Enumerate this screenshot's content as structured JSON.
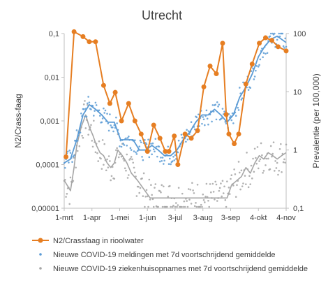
{
  "chart_data": {
    "type": "line",
    "title": "Utrecht",
    "ylabel": "N2/Crass-faag",
    "ylabel_right": "Prevalentie (per 100,000)",
    "x_ticks": [
      "1-mrt",
      "1-apr",
      "1-mei",
      "1-jun",
      "3-jul",
      "3-aug",
      "3-sep",
      "4-okt",
      "4-nov"
    ],
    "x_range": [
      "2020-03-01",
      "2020-11-04"
    ],
    "y_left": {
      "scale": "log",
      "range": [
        1e-05,
        0.1
      ],
      "ticks": [
        "0,00001",
        "0,0001",
        "0,001",
        "0,01",
        "0,1"
      ]
    },
    "y_right": {
      "scale": "log",
      "range": [
        0.1,
        100
      ],
      "ticks": [
        "0,1",
        "1",
        "10",
        "100"
      ]
    },
    "legend_position": "bottom",
    "grid": false,
    "colors": {
      "riool": "#e67e22",
      "meldingen": "#5b9bd5",
      "ziekenhuis": "#a5a5a5",
      "axis": "#bfbfbf"
    },
    "series": [
      {
        "name": "N2/Crassfaag in rioolwater",
        "axis": "left",
        "x": [
          "2020-03-03",
          "2020-03-12",
          "2020-03-22",
          "2020-03-29",
          "2020-04-05",
          "2020-04-14",
          "2020-04-21",
          "2020-04-27",
          "2020-05-04",
          "2020-05-12",
          "2020-05-19",
          "2020-05-26",
          "2020-06-02",
          "2020-06-09",
          "2020-06-16",
          "2020-06-22",
          "2020-06-26",
          "2020-07-02",
          "2020-07-06",
          "2020-07-14",
          "2020-07-21",
          "2020-07-28",
          "2020-08-04",
          "2020-08-11",
          "2020-08-18",
          "2020-08-25",
          "2020-08-29",
          "2020-09-01",
          "2020-09-07",
          "2020-09-12",
          "2020-09-20",
          "2020-09-27",
          "2020-10-05",
          "2020-10-12",
          "2020-10-19",
          "2020-10-26",
          "2020-11-04"
        ],
        "values": [
          0.00015,
          0.11,
          0.085,
          0.065,
          0.065,
          0.0065,
          0.0025,
          0.0045,
          0.001,
          0.0025,
          0.001,
          0.0005,
          0.0002,
          0.0008,
          0.0004,
          0.0002,
          0.0002,
          0.00045,
          0.0001,
          0.0005,
          0.0004,
          0.0006,
          0.006,
          0.018,
          0.012,
          0.06,
          0.0014,
          0.0005,
          0.0003,
          0.0005,
          0.007,
          0.02,
          0.06,
          0.08,
          0.07,
          0.05,
          0.04
        ]
      },
      {
        "name": "Nieuwe COVID-19 meldingen met 7d voortschrijdend gemiddelde",
        "axis": "right",
        "x": [
          "2020-03-01",
          "2020-03-08",
          "2020-03-15",
          "2020-03-22",
          "2020-03-29",
          "2020-04-05",
          "2020-04-12",
          "2020-04-19",
          "2020-04-26",
          "2020-05-03",
          "2020-05-10",
          "2020-05-17",
          "2020-05-24",
          "2020-05-31",
          "2020-06-07",
          "2020-06-14",
          "2020-06-21",
          "2020-06-28",
          "2020-07-05",
          "2020-07-12",
          "2020-07-19",
          "2020-07-26",
          "2020-08-02",
          "2020-08-09",
          "2020-08-16",
          "2020-08-23",
          "2020-08-30",
          "2020-09-06",
          "2020-09-13",
          "2020-09-20",
          "2020-09-27",
          "2020-10-04",
          "2020-10-11",
          "2020-10-18",
          "2020-10-25",
          "2020-11-04"
        ],
        "values": [
          0.6,
          0.7,
          1.5,
          4,
          6,
          5,
          4,
          3,
          3,
          1.5,
          1.5,
          1.5,
          1,
          1,
          1.2,
          1,
          0.8,
          0.8,
          1,
          1.5,
          2,
          3,
          4,
          4,
          5,
          4,
          3,
          4,
          8,
          12,
          20,
          40,
          60,
          80,
          90,
          70
        ]
      },
      {
        "name": "Nieuwe COVID-19 ziekenhuisopnames met 7d voortschrijdend gemiddelde",
        "axis": "right",
        "x": [
          "2020-03-01",
          "2020-03-08",
          "2020-03-12",
          "2020-03-15",
          "2020-03-20",
          "2020-03-25",
          "2020-03-29",
          "2020-04-02",
          "2020-04-06",
          "2020-04-10",
          "2020-04-14",
          "2020-04-18",
          "2020-04-22",
          "2020-04-26",
          "2020-04-30",
          "2020-05-05",
          "2020-05-10",
          "2020-05-15",
          "2020-05-22",
          "2020-06-05",
          "2020-07-01",
          "2020-08-01",
          "2020-08-30",
          "2020-09-04",
          "2020-09-10",
          "2020-09-15",
          "2020-09-20",
          "2020-09-25",
          "2020-09-30",
          "2020-10-05",
          "2020-10-10",
          "2020-10-15",
          "2020-10-20",
          "2020-10-25",
          "2020-10-30",
          "2020-11-04"
        ],
        "values": [
          0.3,
          0.2,
          0.5,
          1.2,
          2.5,
          4,
          2.5,
          1.8,
          1.2,
          0.9,
          0.8,
          0.6,
          0.5,
          0.6,
          1,
          0.8,
          0.6,
          0.4,
          0.3,
          0.15,
          0.15,
          0.15,
          0.15,
          0.25,
          0.3,
          0.35,
          0.5,
          0.4,
          0.6,
          0.8,
          0.7,
          0.9,
          0.8,
          0.7,
          0.8,
          0.9
        ]
      }
    ]
  }
}
